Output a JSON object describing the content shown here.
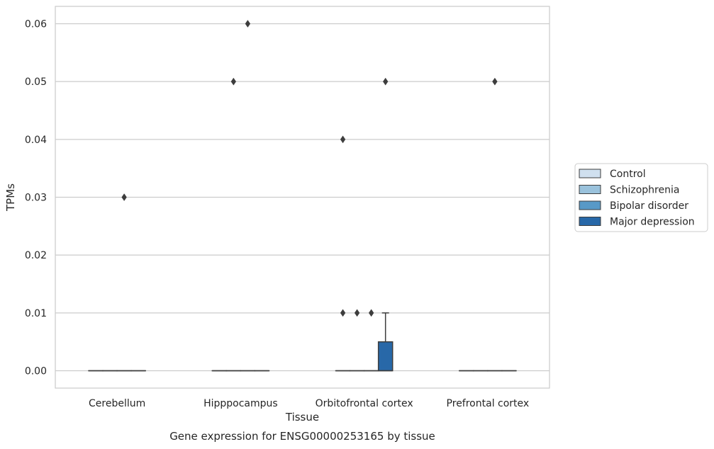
{
  "chart_data": {
    "type": "box",
    "title": "Gene expression for ENSG00000253165 by tissue",
    "xlabel": "Tissue",
    "ylabel": "TPMs",
    "ylim": [
      -0.003,
      0.063
    ],
    "yticks": [
      "0.00",
      "0.01",
      "0.02",
      "0.03",
      "0.04",
      "0.05",
      "0.06"
    ],
    "ytick_values": [
      0,
      0.01,
      0.02,
      0.03,
      0.04,
      0.05,
      0.06
    ],
    "grid": true,
    "legend_position": "right",
    "categories": [
      "Cerebellum",
      "Hipppocampus",
      "Orbitofrontal cortex",
      "Prefrontal cortex"
    ],
    "series": [
      {
        "name": "Control",
        "color": "#d0e0ef",
        "boxes": [
          {
            "q1": 0,
            "median": 0,
            "q3": 0,
            "whisker_low": 0,
            "whisker_high": 0,
            "outliers": []
          },
          {
            "q1": 0,
            "median": 0,
            "q3": 0,
            "whisker_low": 0,
            "whisker_high": 0,
            "outliers": []
          },
          {
            "q1": 0,
            "median": 0,
            "q3": 0,
            "whisker_low": 0,
            "whisker_high": 0,
            "outliers": [
              0.01,
              0.04
            ]
          },
          {
            "q1": 0,
            "median": 0,
            "q3": 0,
            "whisker_low": 0,
            "whisker_high": 0,
            "outliers": []
          }
        ]
      },
      {
        "name": "Schizophrenia",
        "color": "#9ac2dc",
        "boxes": [
          {
            "q1": 0,
            "median": 0,
            "q3": 0,
            "whisker_low": 0,
            "whisker_high": 0,
            "outliers": []
          },
          {
            "q1": 0,
            "median": 0,
            "q3": 0,
            "whisker_low": 0,
            "whisker_high": 0,
            "outliers": [
              0.05
            ]
          },
          {
            "q1": 0,
            "median": 0,
            "q3": 0,
            "whisker_low": 0,
            "whisker_high": 0,
            "outliers": [
              0.01
            ]
          },
          {
            "q1": 0,
            "median": 0,
            "q3": 0,
            "whisker_low": 0,
            "whisker_high": 0,
            "outliers": []
          }
        ]
      },
      {
        "name": "Bipolar disorder",
        "color": "#5899c7",
        "boxes": [
          {
            "q1": 0,
            "median": 0,
            "q3": 0,
            "whisker_low": 0,
            "whisker_high": 0,
            "outliers": [
              0.03
            ]
          },
          {
            "q1": 0,
            "median": 0,
            "q3": 0,
            "whisker_low": 0,
            "whisker_high": 0,
            "outliers": [
              0.06
            ]
          },
          {
            "q1": 0,
            "median": 0,
            "q3": 0,
            "whisker_low": 0,
            "whisker_high": 0,
            "outliers": [
              0.01
            ]
          },
          {
            "q1": 0,
            "median": 0,
            "q3": 0,
            "whisker_low": 0,
            "whisker_high": 0,
            "outliers": [
              0.05
            ]
          }
        ]
      },
      {
        "name": "Major depression",
        "color": "#2868a8",
        "boxes": [
          {
            "q1": 0,
            "median": 0,
            "q3": 0,
            "whisker_low": 0,
            "whisker_high": 0,
            "outliers": []
          },
          {
            "q1": 0,
            "median": 0,
            "q3": 0,
            "whisker_low": 0,
            "whisker_high": 0,
            "outliers": []
          },
          {
            "q1": 0,
            "median": 0,
            "q3": 0.005,
            "whisker_low": 0,
            "whisker_high": 0.01,
            "outliers": [
              0.05
            ]
          },
          {
            "q1": 0,
            "median": 0,
            "q3": 0,
            "whisker_low": 0,
            "whisker_high": 0,
            "outliers": []
          }
        ]
      }
    ]
  }
}
